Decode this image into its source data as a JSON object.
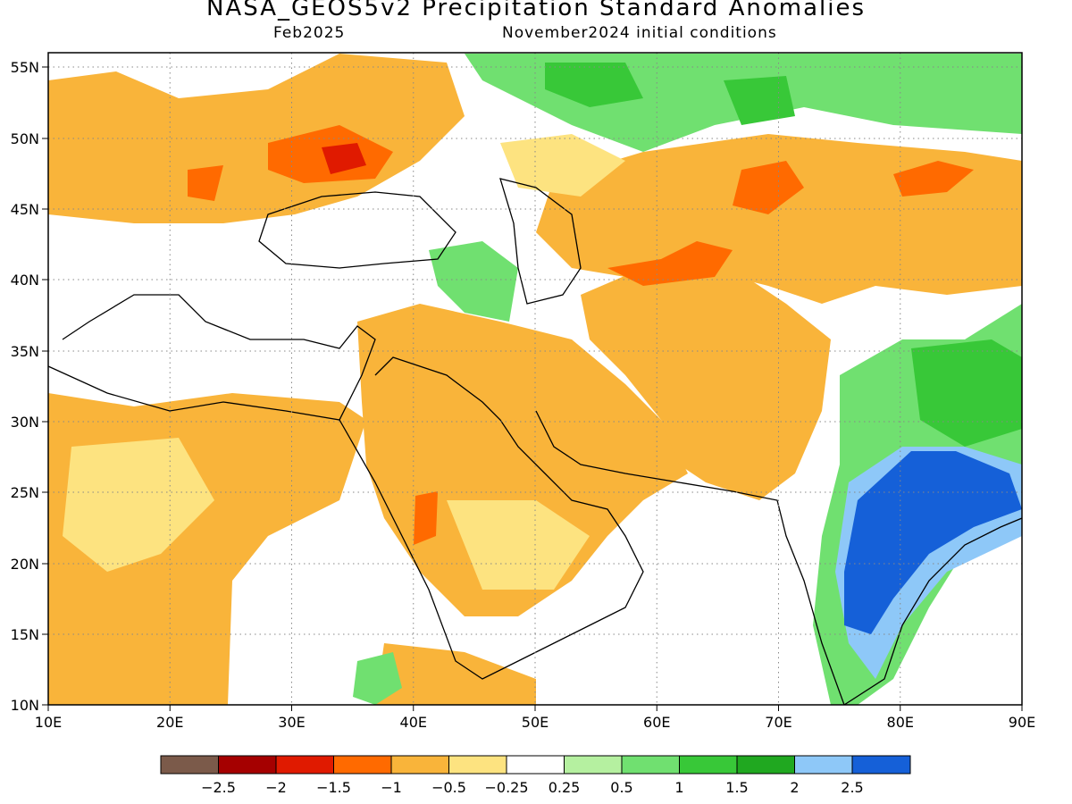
{
  "title": "NASA_GEOS5v2 Precipitation Standard Anomalies",
  "valid_month": "Feb2025",
  "init_conditions": "November2024 initial conditions",
  "map": {
    "lon_labels": [
      "10E",
      "20E",
      "30E",
      "40E",
      "50E",
      "60E",
      "70E",
      "80E",
      "90E"
    ],
    "lat_labels": [
      "55N",
      "50N",
      "45N",
      "40N",
      "35N",
      "30N",
      "25N",
      "20N",
      "15N",
      "10N"
    ],
    "lon_range": [
      10,
      90
    ],
    "lat_range": [
      10,
      56
    ],
    "grid": "dotted"
  },
  "colorbar": {
    "colors": [
      "#7b5a4a",
      "#a50000",
      "#e01a00",
      "#ff6a00",
      "#f9b43a",
      "#fde380",
      "#ffffff",
      "#b5f0a0",
      "#70e070",
      "#38c838",
      "#20a820",
      "#8ec8f8",
      "#1560d8"
    ],
    "labels": [
      "−2.5",
      "−2",
      "−1.5",
      "−1",
      "−0.5",
      "−0.25",
      "0.25",
      "0.5",
      "1",
      "1.5",
      "2",
      "2.5"
    ]
  }
}
